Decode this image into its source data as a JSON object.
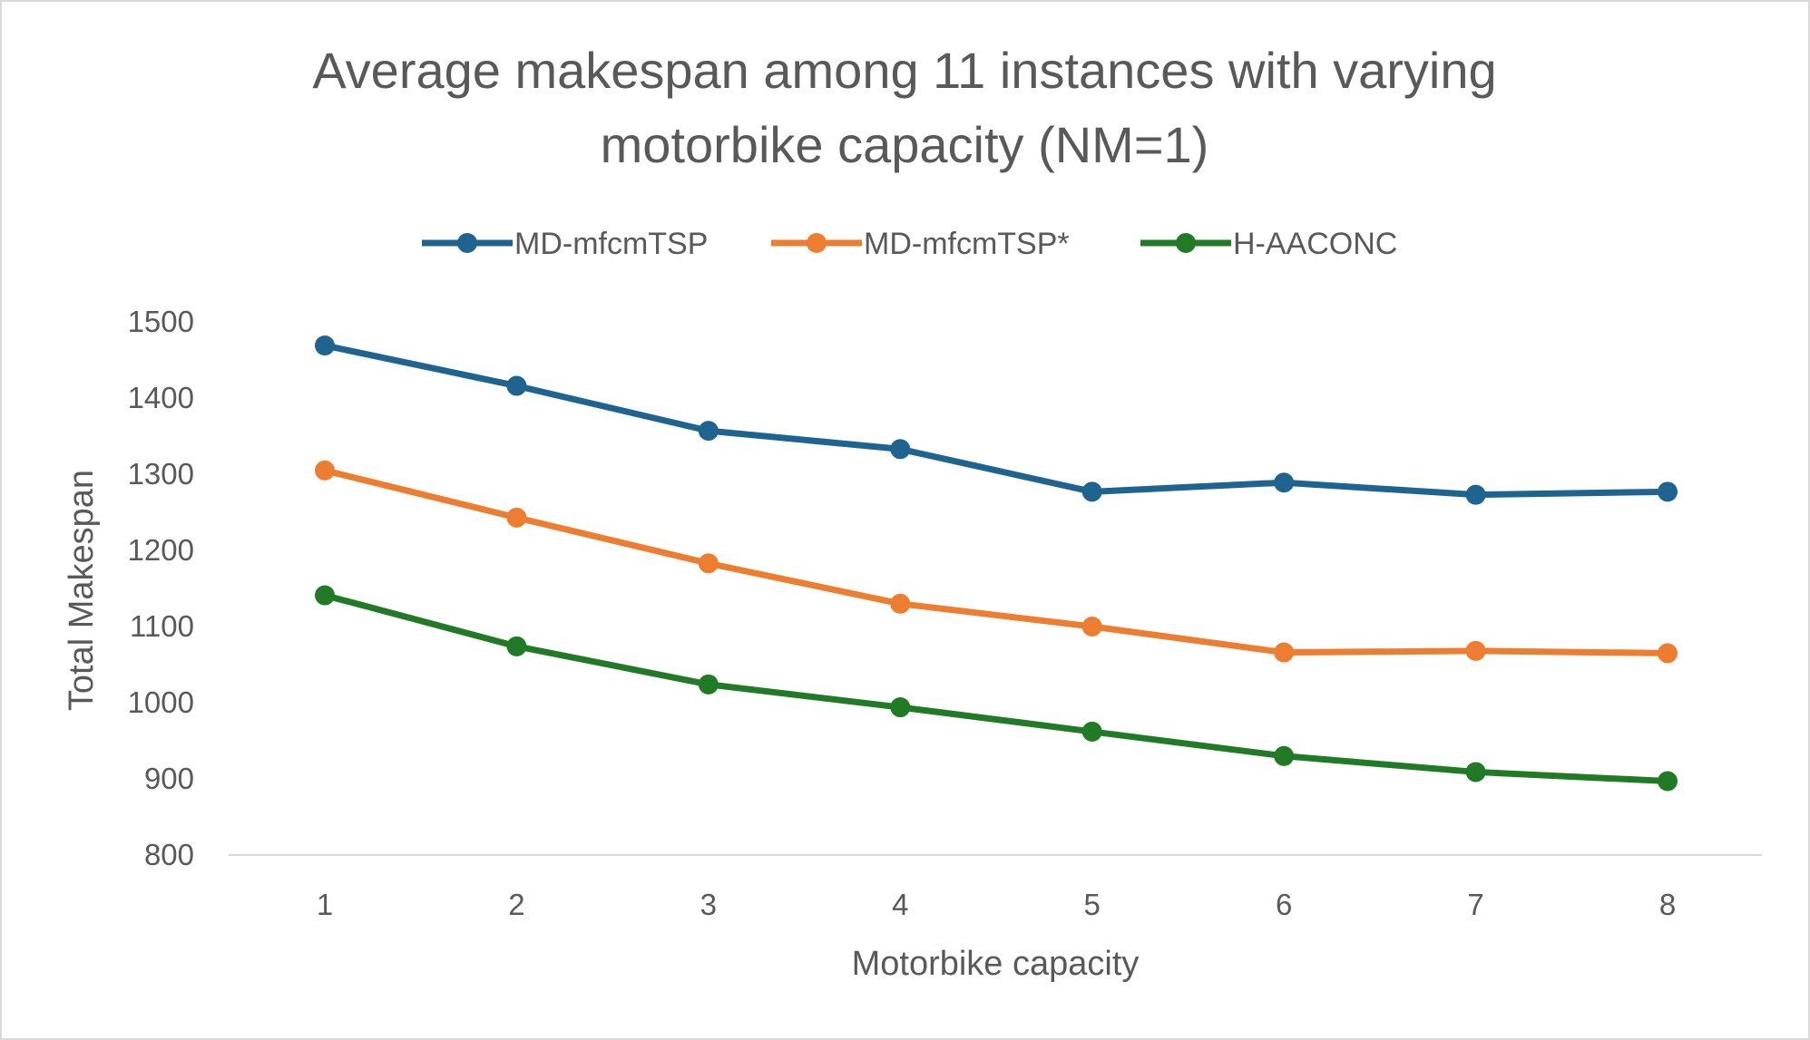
{
  "chart_data": {
    "type": "line",
    "title": "Average makespan among 11 instances with varying motorbike capacity (NM=1)",
    "title_lines": [
      "Average makespan among 11 instances with varying",
      "motorbike capacity (NM=1)"
    ],
    "xlabel": "Motorbike capacity",
    "ylabel": "Total Makespan",
    "x": [
      1,
      2,
      3,
      4,
      5,
      6,
      7,
      8
    ],
    "x_tick_labels": [
      "1",
      "2",
      "3",
      "4",
      "5",
      "6",
      "7",
      "8"
    ],
    "ylim": [
      800,
      1500
    ],
    "y_ticks": [
      800,
      900,
      1000,
      1100,
      1200,
      1300,
      1400,
      1500
    ],
    "y_tick_labels": [
      "800",
      "900",
      "1000",
      "1100",
      "1200",
      "1300",
      "1400",
      "1500"
    ],
    "grid": false,
    "legend_position": "top",
    "series": [
      {
        "name": "MD-mfcmTSP",
        "color": "#1f6391",
        "values": [
          1469,
          1416,
          1357,
          1333,
          1277,
          1289,
          1273,
          1277
        ]
      },
      {
        "name": "MD-mfcmTSP*",
        "color": "#ed7d31",
        "values": [
          1305,
          1243,
          1183,
          1130,
          1100,
          1066,
          1068,
          1065
        ]
      },
      {
        "name": "H-AACONC",
        "color": "#217a25",
        "values": [
          1141,
          1074,
          1024,
          994,
          962,
          930,
          909,
          897
        ]
      }
    ]
  }
}
